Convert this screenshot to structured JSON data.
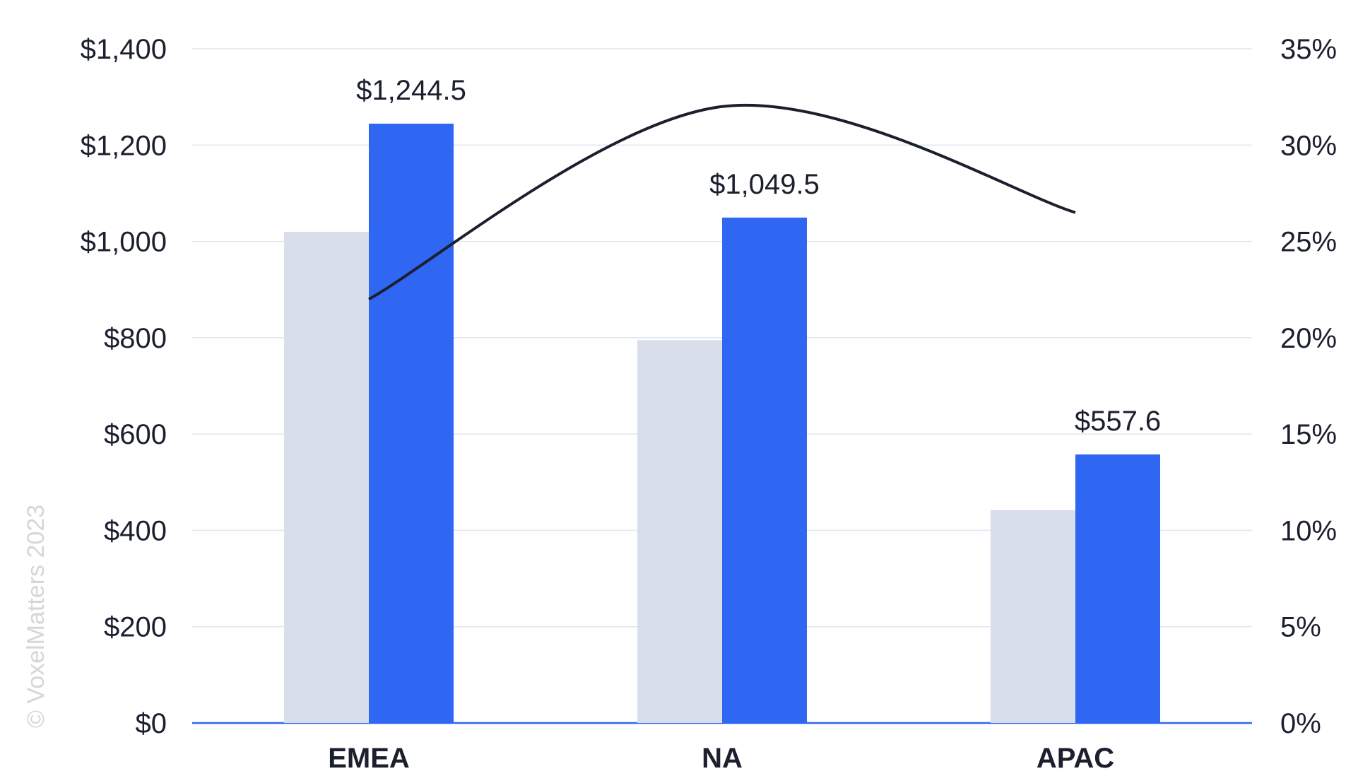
{
  "chart_data": {
    "type": "bar",
    "categories": [
      "EMEA",
      "NA",
      "APAC"
    ],
    "series": [
      {
        "values": [
          1020,
          795,
          442
        ],
        "color": "#d8dfeb"
      },
      {
        "values": [
          1244.5,
          1049.5,
          557.6
        ],
        "color": "#2f66f2"
      }
    ],
    "line_series": {
      "values": [
        22,
        32,
        26.5
      ],
      "color": "#1b1f2e",
      "axis": "right"
    },
    "data_labels": [
      "$1,244.5",
      "$1,049.5",
      "$557.6"
    ],
    "y_left": {
      "ylim": [
        0,
        1400
      ],
      "ticks": [
        "$0",
        "$200",
        "$400",
        "$600",
        "$800",
        "$1,000",
        "$1,200",
        "$1,400"
      ]
    },
    "y_right": {
      "ylim": [
        0,
        35
      ],
      "ticks": [
        "0%",
        "5%",
        "10%",
        "15%",
        "20%",
        "25%",
        "30%",
        "35%"
      ]
    },
    "grid": true,
    "gridline_color": "#dfe6f1",
    "baseline_color": "#2f66f2"
  },
  "watermark": "© VoxelMatters 2023"
}
